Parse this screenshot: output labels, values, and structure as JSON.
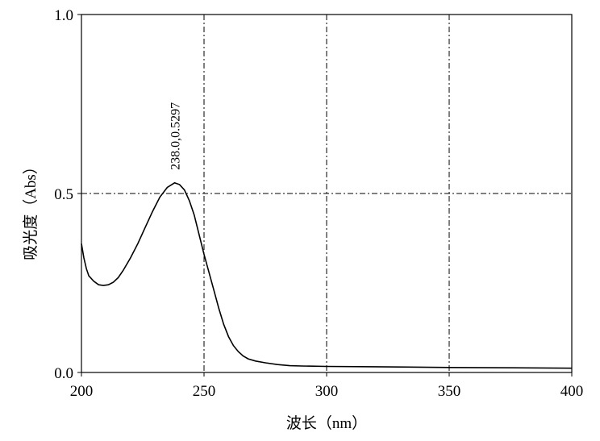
{
  "chart_data": {
    "type": "line",
    "xlabel": "波长（nm）",
    "ylabel": "吸光度（Abs）",
    "xlim": [
      200,
      400
    ],
    "ylim": [
      0.0,
      1.0
    ],
    "x_ticks": [
      200,
      250,
      300,
      350,
      400
    ],
    "x_tick_labels": [
      "200",
      "250",
      "300",
      "350",
      "400"
    ],
    "y_ticks": [
      0.0,
      0.5,
      1.0
    ],
    "y_tick_labels": [
      "0.0",
      "0.5",
      "1.0"
    ],
    "grid": {
      "vertical_lines_at": [
        250,
        300,
        350
      ],
      "horizontal_lines_at": [
        0.5
      ],
      "style": "dash-dot"
    },
    "series": [
      {
        "points": [
          [
            200,
            0.36
          ],
          [
            201,
            0.32
          ],
          [
            202,
            0.29
          ],
          [
            203,
            0.27
          ],
          [
            205,
            0.255
          ],
          [
            207,
            0.245
          ],
          [
            209,
            0.243
          ],
          [
            211,
            0.245
          ],
          [
            213,
            0.252
          ],
          [
            215,
            0.265
          ],
          [
            217,
            0.285
          ],
          [
            220,
            0.32
          ],
          [
            223,
            0.36
          ],
          [
            226,
            0.405
          ],
          [
            229,
            0.45
          ],
          [
            232,
            0.49
          ],
          [
            235,
            0.517
          ],
          [
            238,
            0.5297
          ],
          [
            240,
            0.525
          ],
          [
            242,
            0.51
          ],
          [
            244,
            0.48
          ],
          [
            246,
            0.44
          ],
          [
            248,
            0.385
          ],
          [
            250,
            0.33
          ],
          [
            252,
            0.28
          ],
          [
            254,
            0.23
          ],
          [
            256,
            0.18
          ],
          [
            258,
            0.135
          ],
          [
            260,
            0.1
          ],
          [
            262,
            0.075
          ],
          [
            264,
            0.058
          ],
          [
            266,
            0.046
          ],
          [
            268,
            0.038
          ],
          [
            271,
            0.032
          ],
          [
            275,
            0.027
          ],
          [
            280,
            0.022
          ],
          [
            285,
            0.019
          ],
          [
            290,
            0.018
          ],
          [
            300,
            0.017
          ],
          [
            320,
            0.016
          ],
          [
            350,
            0.014
          ],
          [
            375,
            0.013
          ],
          [
            400,
            0.012
          ]
        ]
      }
    ],
    "annotations": [
      {
        "text": "238.0,0.5297",
        "x": 238.0,
        "y": 0.5297,
        "orientation": "vertical"
      }
    ]
  }
}
